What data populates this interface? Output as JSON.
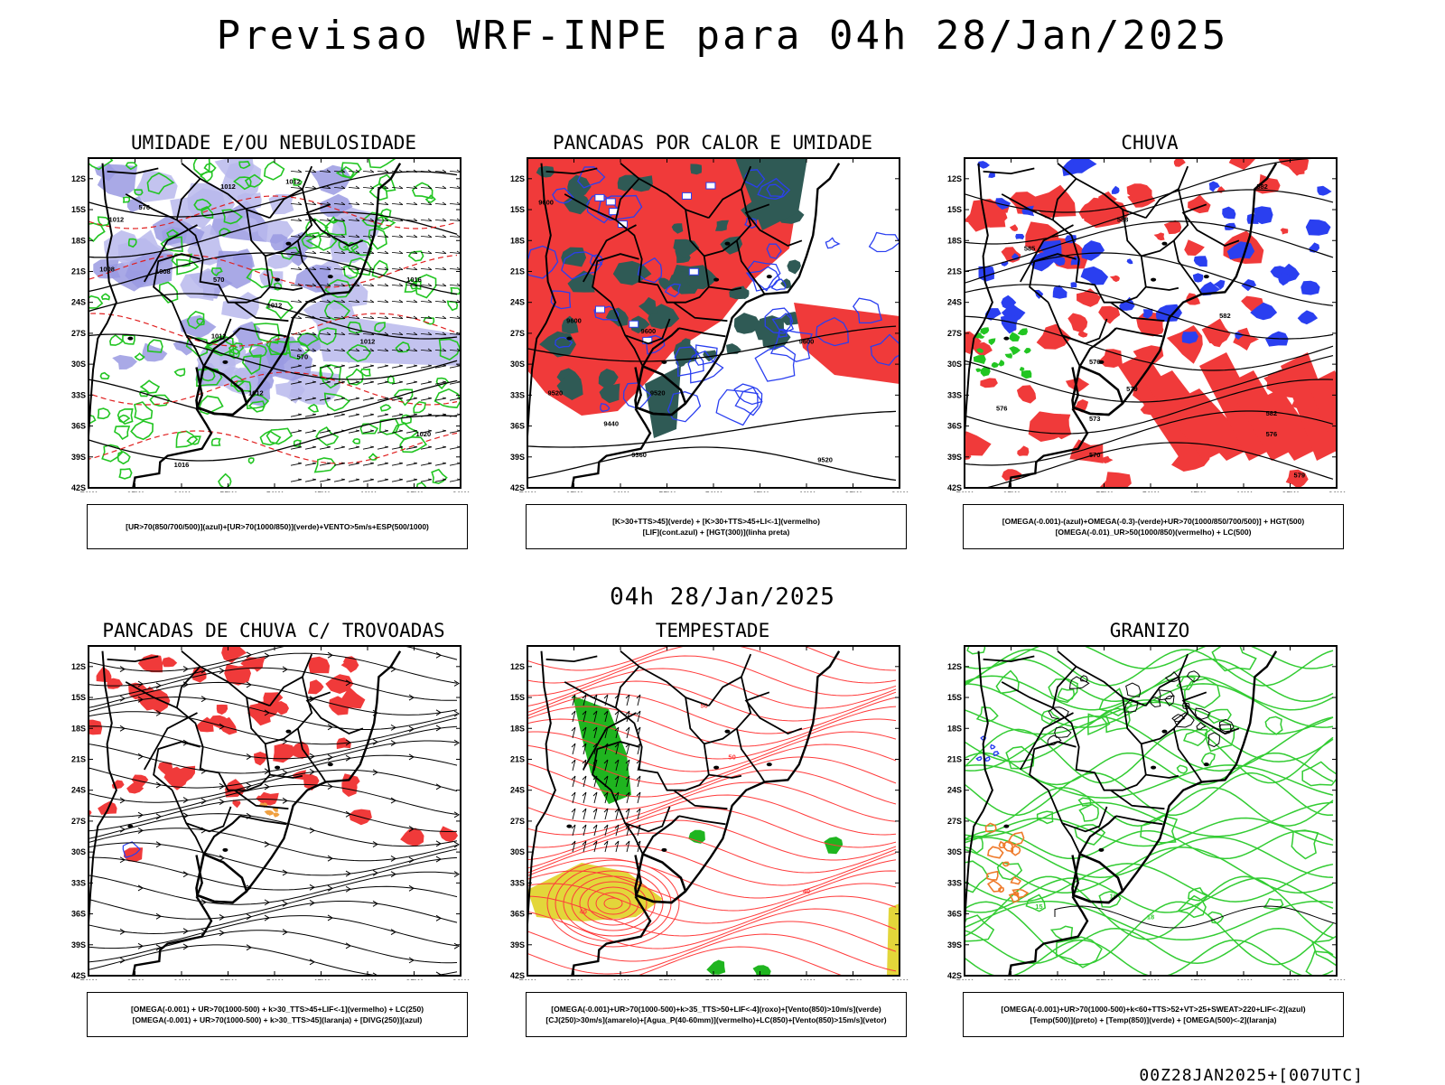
{
  "title": "Previsao WRF-INPE  para 04h 28/Jan/2025",
  "mid_title": "04h 28/Jan/2025",
  "footer": "00Z28JAN2025+[007UTC]",
  "axes": {
    "lat_labels": [
      "12S",
      "15S",
      "18S",
      "21S",
      "24S",
      "27S",
      "30S",
      "33S",
      "36S",
      "39S",
      "42S"
    ],
    "lon_labels": [
      "70W",
      "65W",
      "60W",
      "55W",
      "50W",
      "45W",
      "40W",
      "35W",
      "30W"
    ]
  },
  "panels": [
    {
      "title": "UMIDADE E/OU NEBULOSIDADE",
      "legend": [
        "[UR>70(850/700/500)](azul)+[UR>70(1000/850)](verde)+VENTO>5m/s+ESP(500/1000)"
      ],
      "contour_labels": [
        "1012",
        "1012",
        "1012",
        "1008",
        "1008",
        "1012",
        "1012",
        "1012",
        "1016",
        "1020",
        "1012",
        "1016",
        "576",
        "570",
        "570"
      ]
    },
    {
      "title": "PANCADAS POR CALOR E UMIDADE",
      "legend": [
        "[K>30+TTS>45](verde) + [K>30+TTS>45+LI<-1](vermelho)",
        "[LIF](cont.azul) + [HGT(300)](linha preta)"
      ],
      "contour_labels": [
        "9600",
        "9600",
        "9600",
        "9520",
        "9520",
        "9440",
        "9360",
        "9520",
        "9600"
      ]
    },
    {
      "title": "CHUVA",
      "legend": [
        "[OMEGA(-0.001)-(azul)+OMEGA(-0.3)-(verde)+UR>70(1000/850/700/500)] + HGT(500)",
        "[OMEGA(-0.01)_UR>50(1000/850)(vermelho) + LC(500)"
      ],
      "contour_labels": [
        "582",
        "588",
        "585",
        "582",
        "576",
        "576",
        "579",
        "573",
        "570",
        "576",
        "582",
        "579"
      ]
    },
    {
      "title": "PANCADAS DE CHUVA C/ TROVOADAS",
      "legend": [
        "[OMEGA(-0.001) + UR>70(1000-500) + k>30_TTS>45+LIF<-1](vermelho) + LC(250)",
        "[OMEGA(-0.001) + UR>70(1000-500) + k>30_TTS>45](laranja) + [DIVG(250)](azul)"
      ],
      "contour_labels": []
    },
    {
      "title": "TEMPESTADE",
      "legend": [
        "[OMEGA(-0.001)+UR>70(1000-500)+k>35_TTS>50+LIF<-4](roxo)+[Vento(850)>10m/s](verde)",
        "[CJ(250)>30m/s](amarelo)+[Agua_P(40-60mm)](vermelho)+LC(850)+[Vento(850)>15m/s](vetor)"
      ],
      "contour_labels": [
        "40",
        "50",
        "40",
        "50"
      ]
    },
    {
      "title": "GRANIZO",
      "legend": [
        "[OMEGA(-0.001)+UR>70(1000-500)+k<60+TTS>52+VT>25+SWEAT>220+LIF<-2](azul)",
        "[Temp(500)](preto) + [Temp(850)](verde) + [OMEGA(500)<-2](laranja)"
      ],
      "contour_labels": [
        "15",
        "16",
        "18"
      ]
    }
  ]
}
